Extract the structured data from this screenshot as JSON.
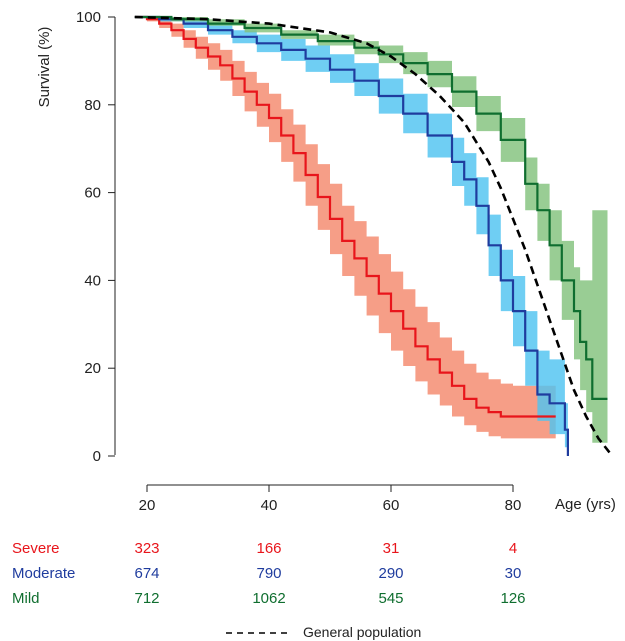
{
  "chart_data": {
    "type": "line",
    "ylabel": "Survival (%)",
    "xlabel": "Age (yrs)",
    "xlim": [
      18,
      96
    ],
    "ylim": [
      0,
      100
    ],
    "x_ticks": [
      20,
      40,
      60,
      80
    ],
    "y_ticks": [
      0,
      20,
      40,
      60,
      80,
      100
    ],
    "grid": false,
    "series": [
      {
        "name": "Severe",
        "color": "#e8151b",
        "band_color": "#f4896c",
        "points": [
          [
            18,
            100
          ],
          [
            20,
            99.5
          ],
          [
            22,
            98.5
          ],
          [
            24,
            97
          ],
          [
            26,
            95
          ],
          [
            28,
            93
          ],
          [
            30,
            91
          ],
          [
            32,
            89
          ],
          [
            34,
            86
          ],
          [
            36,
            83
          ],
          [
            38,
            80
          ],
          [
            40,
            77
          ],
          [
            42,
            73
          ],
          [
            44,
            69
          ],
          [
            46,
            64
          ],
          [
            48,
            59
          ],
          [
            50,
            54
          ],
          [
            52,
            49
          ],
          [
            54,
            45
          ],
          [
            56,
            41
          ],
          [
            58,
            37
          ],
          [
            60,
            33
          ],
          [
            62,
            29
          ],
          [
            64,
            25
          ],
          [
            66,
            22
          ],
          [
            68,
            19
          ],
          [
            70,
            16
          ],
          [
            72,
            13
          ],
          [
            74,
            11
          ],
          [
            76,
            10
          ],
          [
            78,
            9
          ],
          [
            80,
            9
          ],
          [
            84,
            9
          ],
          [
            86,
            9
          ],
          [
            87,
            9
          ]
        ],
        "lower": [
          [
            18,
            100
          ],
          [
            20,
            99
          ],
          [
            22,
            97.5
          ],
          [
            24,
            95.5
          ],
          [
            26,
            93
          ],
          [
            28,
            90.5
          ],
          [
            30,
            88
          ],
          [
            32,
            85.5
          ],
          [
            34,
            82
          ],
          [
            36,
            78.5
          ],
          [
            38,
            75
          ],
          [
            40,
            71.5
          ],
          [
            42,
            67
          ],
          [
            44,
            62.5
          ],
          [
            46,
            57
          ],
          [
            48,
            51.5
          ],
          [
            50,
            46
          ],
          [
            52,
            41
          ],
          [
            54,
            36.5
          ],
          [
            56,
            32
          ],
          [
            58,
            28
          ],
          [
            60,
            24
          ],
          [
            62,
            20.5
          ],
          [
            64,
            17
          ],
          [
            66,
            14
          ],
          [
            68,
            11.5
          ],
          [
            70,
            9
          ],
          [
            72,
            7
          ],
          [
            74,
            5.5
          ],
          [
            76,
            4.5
          ],
          [
            78,
            4
          ],
          [
            80,
            4
          ],
          [
            84,
            4
          ],
          [
            86,
            4
          ],
          [
            87,
            4
          ]
        ],
        "upper": [
          [
            18,
            100
          ],
          [
            20,
            100
          ],
          [
            22,
            99.5
          ],
          [
            24,
            98.5
          ],
          [
            26,
            97
          ],
          [
            28,
            95.5
          ],
          [
            30,
            94
          ],
          [
            32,
            92.5
          ],
          [
            34,
            90
          ],
          [
            36,
            87.5
          ],
          [
            38,
            85
          ],
          [
            40,
            82.5
          ],
          [
            42,
            79
          ],
          [
            44,
            75.5
          ],
          [
            46,
            71
          ],
          [
            48,
            66.5
          ],
          [
            50,
            62
          ],
          [
            52,
            57
          ],
          [
            54,
            53.5
          ],
          [
            56,
            50
          ],
          [
            58,
            46
          ],
          [
            60,
            42
          ],
          [
            62,
            38
          ],
          [
            64,
            34
          ],
          [
            66,
            30.5
          ],
          [
            68,
            27
          ],
          [
            70,
            24
          ],
          [
            72,
            21
          ],
          [
            74,
            19
          ],
          [
            76,
            17.5
          ],
          [
            78,
            16.5
          ],
          [
            80,
            16
          ],
          [
            84,
            16
          ],
          [
            86,
            16
          ],
          [
            87,
            16
          ]
        ]
      },
      {
        "name": "Moderate",
        "color": "#1f3c9e",
        "band_color": "#4fc3f0",
        "points": [
          [
            18,
            100
          ],
          [
            22,
            99.5
          ],
          [
            26,
            98.5
          ],
          [
            30,
            97
          ],
          [
            34,
            95.5
          ],
          [
            38,
            94
          ],
          [
            42,
            92.5
          ],
          [
            46,
            90.5
          ],
          [
            50,
            88
          ],
          [
            54,
            85.5
          ],
          [
            58,
            82
          ],
          [
            62,
            78
          ],
          [
            66,
            73
          ],
          [
            70,
            67
          ],
          [
            72,
            63
          ],
          [
            74,
            57
          ],
          [
            76,
            48
          ],
          [
            78,
            40
          ],
          [
            80,
            33
          ],
          [
            82,
            24
          ],
          [
            84,
            14
          ],
          [
            86,
            12
          ],
          [
            87,
            12
          ],
          [
            88,
            12
          ],
          [
            88.5,
            6
          ],
          [
            89,
            0
          ]
        ],
        "lower": [
          [
            18,
            100
          ],
          [
            22,
            99
          ],
          [
            26,
            97.5
          ],
          [
            30,
            96
          ],
          [
            34,
            94
          ],
          [
            38,
            92
          ],
          [
            42,
            90
          ],
          [
            46,
            87.5
          ],
          [
            50,
            85
          ],
          [
            54,
            82
          ],
          [
            58,
            78
          ],
          [
            62,
            73.5
          ],
          [
            66,
            68
          ],
          [
            70,
            61.5
          ],
          [
            72,
            57
          ],
          [
            74,
            50.5
          ],
          [
            76,
            41
          ],
          [
            78,
            33
          ],
          [
            80,
            25
          ],
          [
            82,
            16
          ],
          [
            84,
            8
          ],
          [
            86,
            5
          ],
          [
            87,
            5
          ],
          [
            88,
            5
          ],
          [
            88.5,
            2
          ],
          [
            89,
            0
          ]
        ],
        "upper": [
          [
            18,
            100
          ],
          [
            22,
            100
          ],
          [
            26,
            99.5
          ],
          [
            30,
            98.5
          ],
          [
            34,
            97
          ],
          [
            38,
            96
          ],
          [
            42,
            95
          ],
          [
            46,
            93.5
          ],
          [
            50,
            91.5
          ],
          [
            54,
            89.5
          ],
          [
            58,
            86
          ],
          [
            62,
            82.5
          ],
          [
            66,
            78
          ],
          [
            70,
            72.5
          ],
          [
            72,
            69
          ],
          [
            74,
            63.5
          ],
          [
            76,
            55
          ],
          [
            78,
            47
          ],
          [
            80,
            41
          ],
          [
            82,
            33
          ],
          [
            84,
            24
          ],
          [
            86,
            22
          ],
          [
            87,
            22
          ],
          [
            88,
            22
          ],
          [
            88.5,
            12
          ],
          [
            89,
            0
          ]
        ]
      },
      {
        "name": "Mild",
        "color": "#0f6e2f",
        "band_color": "#83c27d",
        "points": [
          [
            18,
            100
          ],
          [
            24,
            99.5
          ],
          [
            30,
            98.5
          ],
          [
            36,
            97.5
          ],
          [
            42,
            96
          ],
          [
            48,
            94.5
          ],
          [
            54,
            93
          ],
          [
            58,
            91.5
          ],
          [
            62,
            89.5
          ],
          [
            66,
            87
          ],
          [
            70,
            83
          ],
          [
            74,
            78
          ],
          [
            78,
            72
          ],
          [
            82,
            62
          ],
          [
            84,
            56
          ],
          [
            86,
            48
          ],
          [
            88,
            40
          ],
          [
            90,
            33
          ],
          [
            91,
            26
          ],
          [
            92,
            22
          ],
          [
            93,
            13
          ],
          [
            95.5,
            13
          ]
        ],
        "lower": [
          [
            18,
            100
          ],
          [
            24,
            99
          ],
          [
            30,
            98
          ],
          [
            36,
            96.5
          ],
          [
            42,
            95
          ],
          [
            48,
            93.5
          ],
          [
            54,
            91.5
          ],
          [
            58,
            89.5
          ],
          [
            62,
            87
          ],
          [
            66,
            84
          ],
          [
            70,
            79.5
          ],
          [
            74,
            74
          ],
          [
            78,
            67
          ],
          [
            82,
            56
          ],
          [
            84,
            49
          ],
          [
            86,
            40
          ],
          [
            88,
            31
          ],
          [
            90,
            22
          ],
          [
            91,
            15
          ],
          [
            92,
            10
          ],
          [
            93,
            3
          ],
          [
            95.5,
            3
          ]
        ],
        "upper": [
          [
            18,
            100
          ],
          [
            24,
            100
          ],
          [
            30,
            99.5
          ],
          [
            36,
            98.5
          ],
          [
            42,
            97
          ],
          [
            48,
            96
          ],
          [
            54,
            94.5
          ],
          [
            58,
            93.5
          ],
          [
            62,
            92
          ],
          [
            66,
            90
          ],
          [
            70,
            86.5
          ],
          [
            74,
            82
          ],
          [
            78,
            77
          ],
          [
            82,
            68
          ],
          [
            84,
            62
          ],
          [
            86,
            56
          ],
          [
            88,
            49
          ],
          [
            90,
            43
          ],
          [
            91,
            40
          ],
          [
            92,
            40
          ],
          [
            93,
            56
          ],
          [
            95.5,
            56
          ]
        ]
      },
      {
        "name": "General population",
        "color": "#000000",
        "dashed": true,
        "points": [
          [
            18,
            100
          ],
          [
            30,
            99.5
          ],
          [
            40,
            98.5
          ],
          [
            50,
            96.5
          ],
          [
            56,
            94
          ],
          [
            60,
            91
          ],
          [
            64,
            87
          ],
          [
            68,
            82
          ],
          [
            72,
            76
          ],
          [
            76,
            67
          ],
          [
            78,
            61
          ],
          [
            80,
            54
          ],
          [
            82,
            47
          ],
          [
            84,
            39
          ],
          [
            86,
            31
          ],
          [
            88,
            23
          ],
          [
            90,
            15
          ],
          [
            92,
            9
          ],
          [
            94,
            4
          ],
          [
            96,
            0.5
          ]
        ]
      }
    ],
    "risk_table": {
      "rows": [
        {
          "label": "Severe",
          "color": "#e8151b",
          "values": [
            "323",
            "166",
            "31",
            "4"
          ]
        },
        {
          "label": "Moderate",
          "color": "#1f3c9e",
          "values": [
            "674",
            "790",
            "290",
            "30"
          ]
        },
        {
          "label": "Mild",
          "color": "#0f6e2f",
          "values": [
            "712",
            "1062",
            "545",
            "126"
          ]
        }
      ]
    },
    "legend": {
      "label": "General population",
      "placement": "bottom"
    }
  }
}
